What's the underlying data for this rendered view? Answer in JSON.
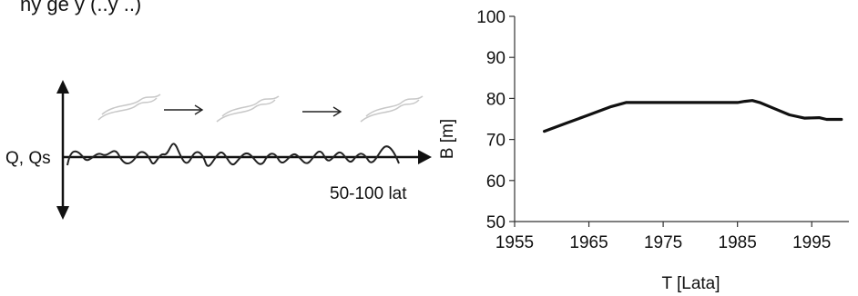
{
  "header_fragment": "ny ge y (..y ..)",
  "schematic": {
    "y_label": "Q, Qs",
    "x_label": "50-100 lat"
  },
  "chart_data": {
    "type": "line",
    "title": "",
    "xlabel": "T [Lata]",
    "ylabel": "B [m]",
    "xlim": [
      1955,
      2000
    ],
    "ylim": [
      50,
      100
    ],
    "x_ticks": [
      1955,
      1965,
      1975,
      1985,
      1995
    ],
    "y_ticks": [
      50,
      60,
      70,
      80,
      90,
      100
    ],
    "grid": false,
    "series": [
      {
        "color": "#111111",
        "x": [
          1959,
          1962,
          1965,
          1968,
          1970,
          1975,
          1980,
          1985,
          1986,
          1987,
          1988,
          1990,
          1992,
          1994,
          1996,
          1997,
          1999
        ],
        "y": [
          72,
          74,
          76,
          78,
          79,
          79,
          79,
          79,
          79.3,
          79.5,
          79,
          77.5,
          76,
          75.2,
          75.3,
          74.9,
          74.9
        ]
      }
    ]
  }
}
